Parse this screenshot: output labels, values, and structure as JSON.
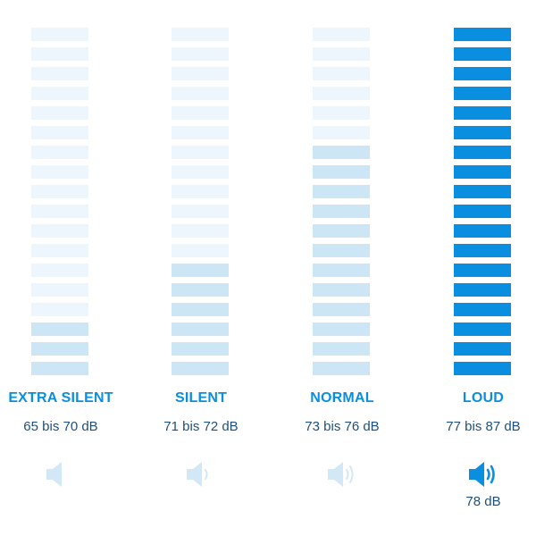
{
  "colors": {
    "accent": "#0a8ee0",
    "segment_dim": "#eef6fd",
    "segment_mid": "#cce6f6",
    "segment_on": "#0a8ee0",
    "speaker_muted": "#d2e8f6",
    "range_text": "#1f4f78"
  },
  "meters": [
    {
      "label": "EXTRA SILENT",
      "range": "65 bis 70 dB",
      "level": 3,
      "segment_color": "segment_mid",
      "speaker_waves": 0,
      "speaker_icon": "speaker-mute-icon",
      "active": false
    },
    {
      "label": "SILENT",
      "range": "71 bis 72 dB",
      "level": 6,
      "segment_color": "segment_mid",
      "speaker_waves": 1,
      "speaker_icon": "speaker-low-icon",
      "active": false
    },
    {
      "label": "NORMAL",
      "range": "73 bis 76 dB",
      "level": 12,
      "segment_color": "segment_mid",
      "speaker_waves": 2,
      "speaker_icon": "speaker-medium-icon",
      "active": false
    },
    {
      "label": "LOUD",
      "range": "77 bis 87 dB",
      "level": 18,
      "segment_color": "segment_on",
      "speaker_waves": 2,
      "speaker_icon": "speaker-loud-icon",
      "active": true,
      "current": "78 dB"
    }
  ],
  "total_segments": 18
}
